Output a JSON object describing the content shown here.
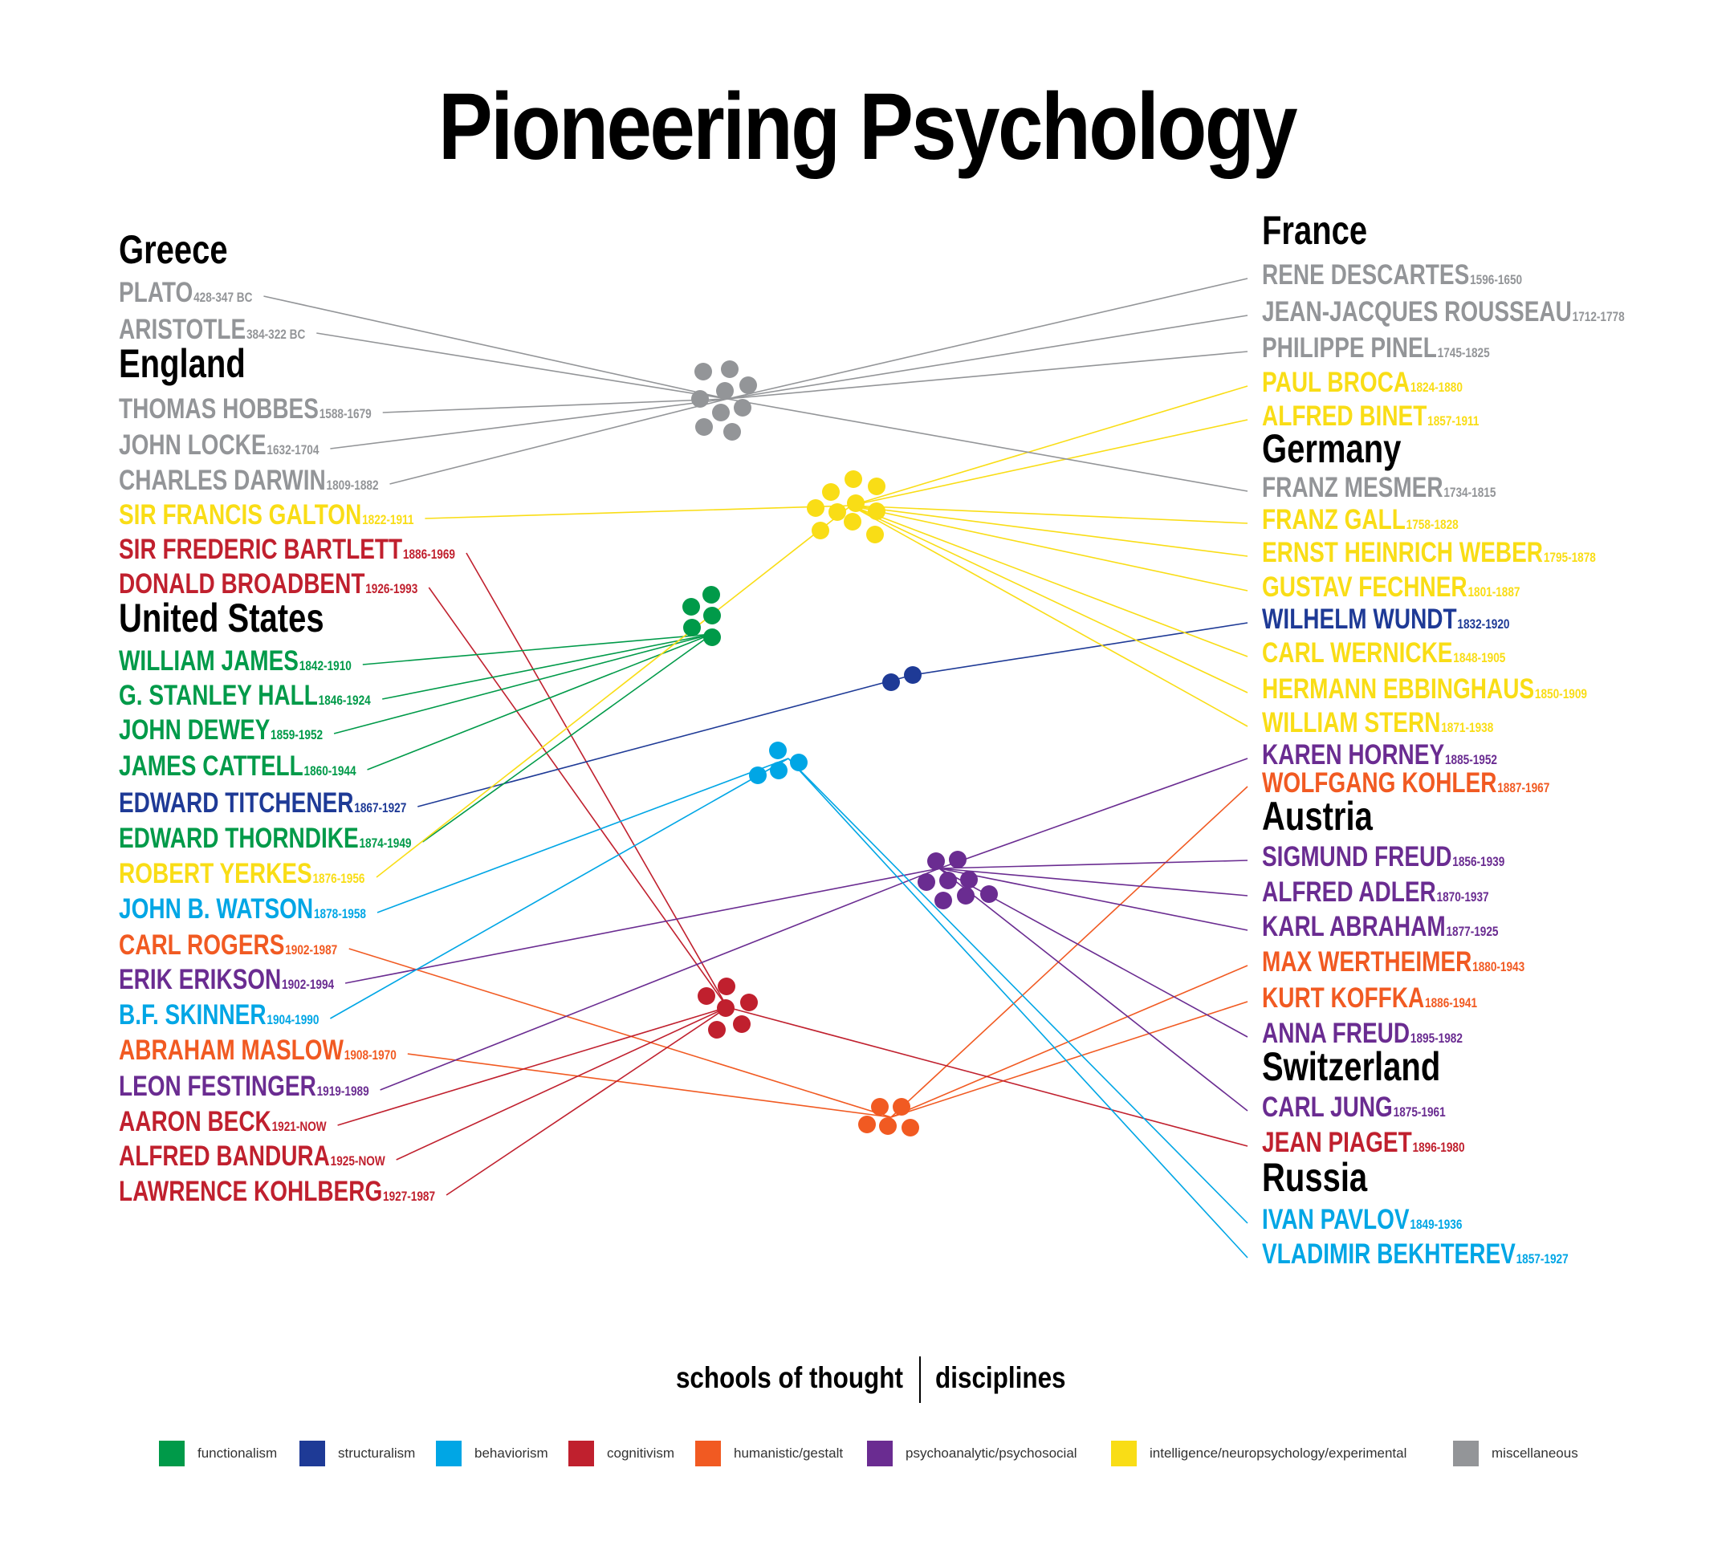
{
  "title": "Pioneering Psychology",
  "schools": {
    "functionalism": "#009a49",
    "structuralism": "#1e3a96",
    "behaviorism": "#00a6e5",
    "cognitivism": "#c0202e",
    "humanistic": "#f15a22",
    "psychoanalytic": "#6a2c91",
    "intelligence": "#f9dd16",
    "misc": "#939598"
  },
  "left": [
    {
      "type": "heading",
      "text": "Greece"
    },
    {
      "type": "person",
      "name": "PLATO",
      "dates": "428-347 BC",
      "school": "misc"
    },
    {
      "type": "person",
      "name": "ARISTOTLE",
      "dates": "384-322 BC",
      "school": "misc"
    },
    {
      "type": "heading",
      "text": "England"
    },
    {
      "type": "person",
      "name": "THOMAS HOBBES",
      "dates": "1588-1679",
      "school": "misc"
    },
    {
      "type": "person",
      "name": "JOHN LOCKE",
      "dates": "1632-1704",
      "school": "misc"
    },
    {
      "type": "person",
      "name": "CHARLES DARWIN",
      "dates": "1809-1882",
      "school": "misc"
    },
    {
      "type": "person",
      "name": "SIR FRANCIS GALTON",
      "dates": "1822-1911",
      "school": "intelligence"
    },
    {
      "type": "person",
      "name": "SIR FREDERIC BARTLETT",
      "dates": "1886-1969",
      "school": "cognitivism"
    },
    {
      "type": "person",
      "name": "DONALD BROADBENT",
      "dates": "1926-1993",
      "school": "cognitivism"
    },
    {
      "type": "heading",
      "text": "United States"
    },
    {
      "type": "person",
      "name": "WILLIAM JAMES",
      "dates": "1842-1910",
      "school": "functionalism"
    },
    {
      "type": "person",
      "name": "G. STANLEY HALL",
      "dates": "1846-1924",
      "school": "functionalism"
    },
    {
      "type": "person",
      "name": "JOHN DEWEY",
      "dates": "1859-1952",
      "school": "functionalism"
    },
    {
      "type": "person",
      "name": "JAMES CATTELL",
      "dates": "1860-1944",
      "school": "functionalism"
    },
    {
      "type": "person",
      "name": "EDWARD TITCHENER",
      "dates": "1867-1927",
      "school": "structuralism"
    },
    {
      "type": "person",
      "name": "EDWARD THORNDIKE",
      "dates": "1874-1949",
      "school": "functionalism"
    },
    {
      "type": "person",
      "name": "ROBERT YERKES",
      "dates": "1876-1956",
      "school": "intelligence"
    },
    {
      "type": "person",
      "name": "JOHN B. WATSON",
      "dates": "1878-1958",
      "school": "behaviorism"
    },
    {
      "type": "person",
      "name": "CARL ROGERS",
      "dates": "1902-1987",
      "school": "humanistic"
    },
    {
      "type": "person",
      "name": "ERIK ERIKSON",
      "dates": "1902-1994",
      "school": "psychoanalytic"
    },
    {
      "type": "person",
      "name": "B.F. SKINNER",
      "dates": "1904-1990",
      "school": "behaviorism"
    },
    {
      "type": "person",
      "name": "ABRAHAM MASLOW",
      "dates": "1908-1970",
      "school": "humanistic"
    },
    {
      "type": "person",
      "name": "LEON FESTINGER",
      "dates": "1919-1989",
      "school": "psychoanalytic"
    },
    {
      "type": "person",
      "name": "AARON BECK",
      "dates": "1921-NOW",
      "school": "cognitivism"
    },
    {
      "type": "person",
      "name": "ALFRED BANDURA",
      "dates": "1925-NOW",
      "school": "cognitivism"
    },
    {
      "type": "person",
      "name": "LAWRENCE KOHLBERG",
      "dates": "1927-1987",
      "school": "cognitivism"
    }
  ],
  "right": [
    {
      "type": "heading",
      "text": "France"
    },
    {
      "type": "person",
      "name": "RENE DESCARTES",
      "dates": "1596-1650",
      "school": "misc"
    },
    {
      "type": "person",
      "name": "JEAN-JACQUES ROUSSEAU",
      "dates": "1712-1778",
      "school": "misc"
    },
    {
      "type": "person",
      "name": "PHILIPPE PINEL",
      "dates": "1745-1825",
      "school": "misc"
    },
    {
      "type": "person",
      "name": "PAUL BROCA",
      "dates": "1824-1880",
      "school": "intelligence"
    },
    {
      "type": "person",
      "name": "ALFRED BINET",
      "dates": "1857-1911",
      "school": "intelligence"
    },
    {
      "type": "heading",
      "text": "Germany"
    },
    {
      "type": "person",
      "name": "FRANZ MESMER",
      "dates": "1734-1815",
      "school": "misc"
    },
    {
      "type": "person",
      "name": "FRANZ GALL",
      "dates": "1758-1828",
      "school": "intelligence"
    },
    {
      "type": "person",
      "name": "ERNST HEINRICH WEBER",
      "dates": "1795-1878",
      "school": "intelligence"
    },
    {
      "type": "person",
      "name": "GUSTAV FECHNER",
      "dates": "1801-1887",
      "school": "intelligence"
    },
    {
      "type": "person",
      "name": "WILHELM WUNDT",
      "dates": "1832-1920",
      "school": "structuralism"
    },
    {
      "type": "person",
      "name": "CARL WERNICKE",
      "dates": "1848-1905",
      "school": "intelligence"
    },
    {
      "type": "person",
      "name": "HERMANN EBBINGHAUS",
      "dates": "1850-1909",
      "school": "intelligence"
    },
    {
      "type": "person",
      "name": "WILLIAM STERN",
      "dates": "1871-1938",
      "school": "intelligence"
    },
    {
      "type": "person",
      "name": "KAREN HORNEY",
      "dates": "1885-1952",
      "school": "psychoanalytic"
    },
    {
      "type": "person",
      "name": "WOLFGANG KOHLER",
      "dates": "1887-1967",
      "school": "humanistic"
    },
    {
      "type": "heading",
      "text": "Austria"
    },
    {
      "type": "person",
      "name": "SIGMUND FREUD",
      "dates": "1856-1939",
      "school": "psychoanalytic"
    },
    {
      "type": "person",
      "name": "ALFRED ADLER",
      "dates": "1870-1937",
      "school": "psychoanalytic"
    },
    {
      "type": "person",
      "name": "KARL ABRAHAM",
      "dates": "1877-1925",
      "school": "psychoanalytic"
    },
    {
      "type": "person",
      "name": "MAX WERTHEIMER",
      "dates": "1880-1943",
      "school": "humanistic"
    },
    {
      "type": "person",
      "name": "KURT KOFFKA",
      "dates": "1886-1941",
      "school": "humanistic"
    },
    {
      "type": "person",
      "name": "ANNA FREUD",
      "dates": "1895-1982",
      "school": "psychoanalytic"
    },
    {
      "type": "heading",
      "text": "Switzerland"
    },
    {
      "type": "person",
      "name": "CARL JUNG",
      "dates": "1875-1961",
      "school": "psychoanalytic"
    },
    {
      "type": "person",
      "name": "JEAN PIAGET",
      "dates": "1896-1980",
      "school": "cognitivism"
    },
    {
      "type": "heading",
      "text": "Russia"
    },
    {
      "type": "person",
      "name": "IVAN PAVLOV",
      "dates": "1849-1936",
      "school": "behaviorism"
    },
    {
      "type": "person",
      "name": "VLADIMIR BEKHTEREV",
      "dates": "1857-1927",
      "school": "behaviorism"
    }
  ],
  "footer": {
    "left": "schools of thought",
    "right": "disciplines"
  },
  "legend": [
    {
      "label": "functionalism",
      "school": "functionalism"
    },
    {
      "label": "structuralism",
      "school": "structuralism"
    },
    {
      "label": "behaviorism",
      "school": "behaviorism"
    },
    {
      "label": "cognitivism",
      "school": "cognitivism"
    },
    {
      "label": "humanistic/gestalt",
      "school": "humanistic"
    },
    {
      "label": "psychoanalytic/psychosocial",
      "school": "psychoanalytic"
    },
    {
      "label": "intelligence/neuropsychology/experimental",
      "school": "intelligence"
    },
    {
      "label": "miscellaneous",
      "school": "misc"
    }
  ]
}
